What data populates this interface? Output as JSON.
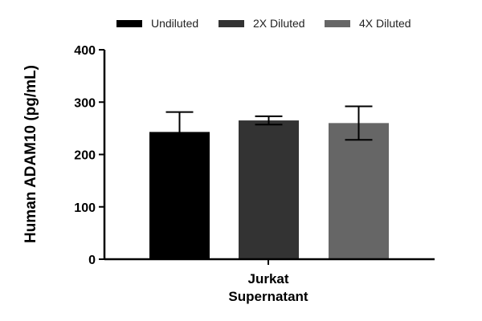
{
  "chart_data": {
    "type": "bar",
    "title": "",
    "xlabel": "",
    "ylabel": "Human ADAM10 (pg/mL)",
    "ylim": [
      0,
      400
    ],
    "yticks": [
      0,
      100,
      200,
      300,
      400
    ],
    "category_lines": [
      "Jurkat",
      "Supernatant"
    ],
    "legend_position": "top",
    "series": [
      {
        "name": "Undiluted",
        "value": 243,
        "error": 38,
        "color": "#000000"
      },
      {
        "name": "2X Diluted",
        "value": 265,
        "error": 8,
        "color": "#333333"
      },
      {
        "name": "4X Diluted",
        "value": 260,
        "error": 32,
        "color": "#666666"
      }
    ]
  }
}
